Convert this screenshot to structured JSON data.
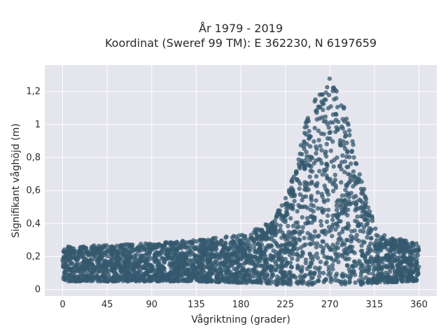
{
  "chart_data": {
    "type": "scatter",
    "title": "År 1979 - 2019",
    "subtitle": "Koordinat (Sweref 99 TM): E 362230, N 6197659",
    "xlabel": "Vågriktning (grader)",
    "ylabel": "Signifikant våghöjd (m)",
    "xlim": [
      -18,
      378
    ],
    "ylim": [
      -0.04,
      1.36
    ],
    "x_ticks": [
      0,
      45,
      90,
      135,
      180,
      225,
      270,
      315,
      360
    ],
    "x_tick_labels": [
      "0",
      "45",
      "90",
      "135",
      "180",
      "225",
      "270",
      "315",
      "360"
    ],
    "y_ticks": [
      0,
      0.2,
      0.4,
      0.6,
      0.8,
      1.0,
      1.2
    ],
    "y_tick_labels": [
      "0",
      "0,2",
      "0,4",
      "0,6",
      "0,8",
      "1",
      "1,2"
    ],
    "grid": true,
    "legend": "none",
    "marker_color": "#34586e",
    "plot_background": "#e5e5ee",
    "envelope": {
      "direction": [
        0,
        45,
        90,
        135,
        180,
        200,
        215,
        225,
        235,
        245,
        255,
        265,
        270,
        275,
        285,
        295,
        305,
        315,
        325,
        345,
        360
      ],
      "max_height": [
        0.26,
        0.27,
        0.28,
        0.3,
        0.33,
        0.38,
        0.45,
        0.55,
        0.75,
        1.0,
        1.15,
        1.25,
        1.28,
        1.25,
        1.1,
        0.85,
        0.6,
        0.4,
        0.33,
        0.3,
        0.28
      ],
      "min_height": [
        0.05,
        0.05,
        0.05,
        0.05,
        0.04,
        0.04,
        0.03,
        0.03,
        0.03,
        0.03,
        0.03,
        0.03,
        0.03,
        0.03,
        0.03,
        0.03,
        0.03,
        0.04,
        0.04,
        0.05,
        0.05
      ]
    }
  }
}
